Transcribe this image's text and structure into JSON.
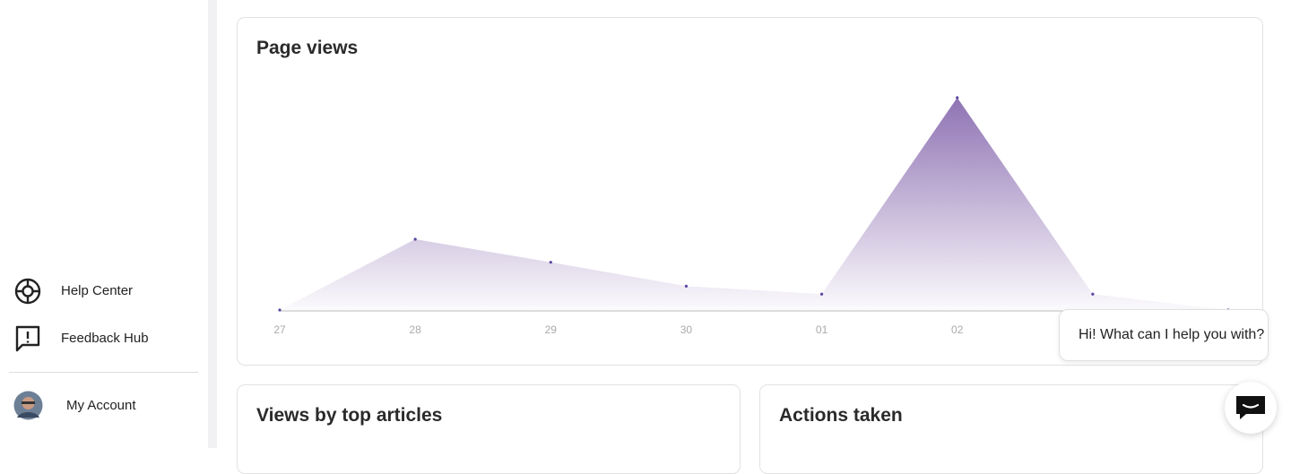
{
  "sidebar": {
    "items": [
      "Help Center",
      "Feedback Hub"
    ],
    "account": "My Account"
  },
  "chart_data": {
    "type": "area",
    "title": "Page views",
    "categories": [
      "27",
      "28",
      "29",
      "30",
      "01",
      "02",
      null,
      null
    ],
    "values": [
      0,
      8,
      5.4,
      2.7,
      1.8,
      24,
      1.8,
      0
    ],
    "color": "#7b5aa6",
    "ylim": [
      0,
      24
    ],
    "grid": false
  },
  "cards": [
    "Views by top articles",
    "Actions taken"
  ],
  "chat": {
    "bubble": "Hi! What can I help you with?"
  }
}
